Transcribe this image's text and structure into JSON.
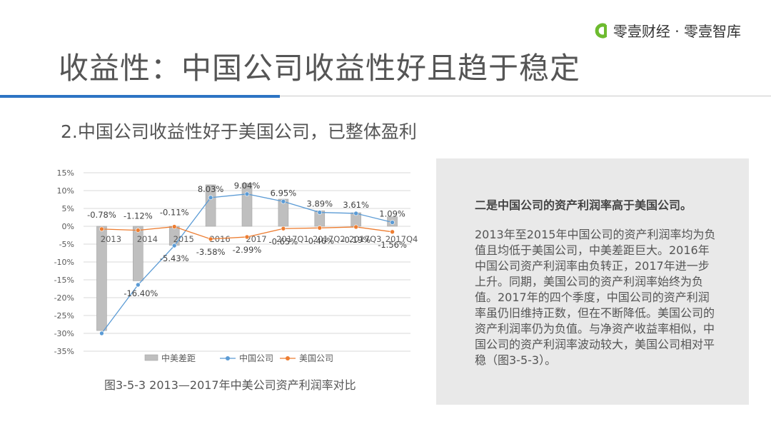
{
  "brand": {
    "name": "零壹财经 · 零壹智库",
    "accent": "#2d74c4",
    "logo_color": "#6dbb2f"
  },
  "slide": {
    "title": "收益性：中国公司收益性好且趋于稳定",
    "subtitle": "2.中国公司收益性好于美国公司，已整体盈利"
  },
  "chart_data": {
    "type": "bar",
    "title": "",
    "categories": [
      "2013",
      "2014",
      "2015",
      "2016",
      "2017",
      "2017Q1",
      "2017Q2",
      "2017Q3",
      "2017Q4"
    ],
    "series": [
      {
        "name": "中美差距",
        "kind": "bar",
        "color": "#bfbfbf",
        "values": [
          -29.22,
          -15.28,
          -5.32,
          11.61,
          12.03,
          7.6,
          4.35,
          3.8,
          2.65
        ]
      },
      {
        "name": "中国公司",
        "kind": "line",
        "color": "#5b9bd5",
        "values": [
          -30.0,
          -16.4,
          -5.43,
          8.03,
          9.04,
          6.95,
          3.89,
          3.61,
          1.09
        ],
        "labels": [
          "",
          "-16.40%",
          "-5.43%",
          "8.03%",
          "9.04%",
          "6.95%",
          "3.89%",
          "3.61%",
          "1.09%"
        ]
      },
      {
        "name": "美国公司",
        "kind": "line",
        "color": "#ed7d31",
        "values": [
          -0.78,
          -1.12,
          -0.11,
          -3.58,
          -2.99,
          -0.65,
          -0.46,
          -0.19,
          -1.56
        ],
        "labels": [
          "-0.78%",
          "-1.12%",
          "-0.11%",
          "-3.58%",
          "-2.99%",
          "-0.65%",
          "-0.46%",
          "-0.19%",
          "-1.56%"
        ]
      }
    ],
    "y_ticks": [
      "15%",
      "10%",
      "5%",
      "0%",
      "-5%",
      "-10%",
      "-15%",
      "-20%",
      "-25%",
      "-30%",
      "-35%"
    ],
    "ylim": [
      -35,
      15
    ],
    "grid": true,
    "legend": "bottom",
    "caption": "图3-5-3 2013—2017年中美公司资产利润率对比"
  },
  "side_note": {
    "heading": "二是中国公司的资产利润率高于美国公司。",
    "body": "2013年至2015年中国公司的资产利润率均为负值且均低于美国公司，中美差距巨大。2016年中国公司资产利润率由负转正，2017年进一步上升。同期，美国公司的资产利润率始终为负值。2017年的四个季度，中国公司的资产利润率虽仍旧维持正数，但在不断降低。美国公司的资产利润率仍为负值。与净资产收益率相似，中国公司的资产利润率波动较大，美国公司相对平稳（图3-5-3）。"
  }
}
